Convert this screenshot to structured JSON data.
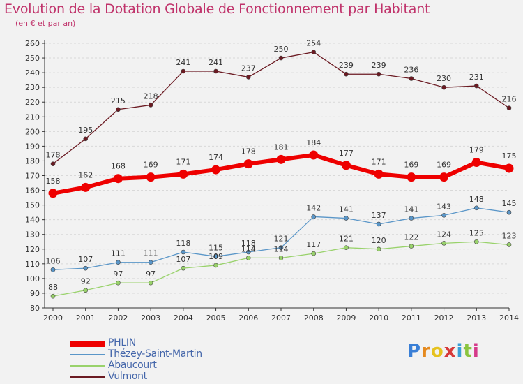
{
  "chart_data": {
    "type": "line",
    "title": "Evolution de la Dotation Globale de Fonctionnement par Habitant",
    "subtitle": "(en € et par an)",
    "x": [
      "2000",
      "2001",
      "2002",
      "2003",
      "2004",
      "2005",
      "2006",
      "2007",
      "2008",
      "2009",
      "2010",
      "2011",
      "2012",
      "2013",
      "2014"
    ],
    "ylim": [
      80,
      260
    ],
    "yticks": [
      80,
      90,
      100,
      110,
      120,
      130,
      140,
      150,
      160,
      170,
      180,
      190,
      200,
      210,
      220,
      230,
      240,
      250,
      260
    ],
    "grid": "horizontal",
    "legend_position": "bottom-left",
    "series": [
      {
        "name": "Vulmont",
        "color": "#6b1a22",
        "values": [
          178,
          195,
          215,
          218,
          241,
          241,
          237,
          250,
          254,
          239,
          239,
          236,
          230,
          231,
          216
        ]
      },
      {
        "name": "Thézey-Saint-Martin",
        "color": "#5a96c8",
        "values": [
          106,
          107,
          111,
          111,
          118,
          115,
          118,
          121,
          142,
          141,
          137,
          141,
          143,
          148,
          145
        ]
      },
      {
        "name": "Abaucourt",
        "color": "#99d26b",
        "values": [
          88,
          92,
          97,
          97,
          107,
          109,
          114,
          114,
          117,
          121,
          120,
          122,
          124,
          125,
          123
        ]
      },
      {
        "name": "PHLIN",
        "color": "#ee0000",
        "values": [
          158,
          162,
          168,
          169,
          171,
          174,
          178,
          181,
          184,
          177,
          171,
          169,
          169,
          179,
          175
        ]
      }
    ],
    "legend": [
      "PHLIN",
      "Thézey-Saint-Martin",
      "Abaucourt",
      "Vulmont"
    ]
  },
  "brand": {
    "letters": [
      "P",
      "r",
      "o",
      "x",
      "i",
      "t",
      "i"
    ],
    "colors": [
      "#3a7fd6",
      "#e58a1f",
      "#e6c21f",
      "#d63a3a",
      "#3a9fd6",
      "#8ac43f",
      "#d63a8a"
    ]
  }
}
